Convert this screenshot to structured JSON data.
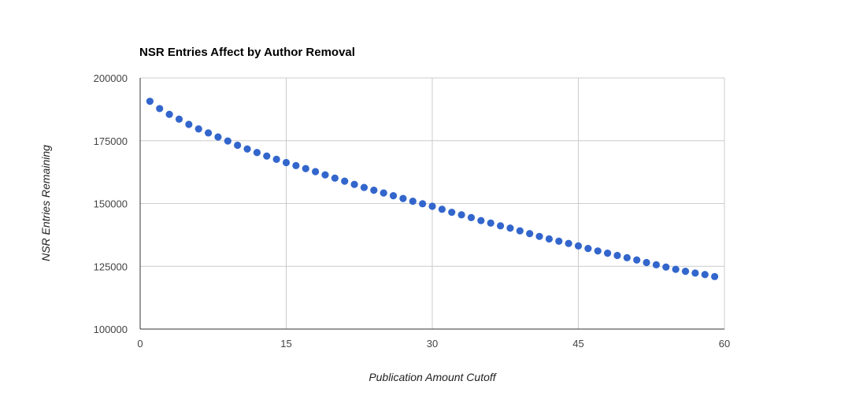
{
  "chart_data": {
    "type": "scatter",
    "title": "NSR Entries Affect by Author Removal",
    "xlabel": "Publication Amount Cutoff",
    "ylabel": "NSR Entries Remaining",
    "xlim": [
      0,
      60
    ],
    "ylim": [
      100000,
      200000
    ],
    "xticks": [
      "0",
      "15",
      "30",
      "45",
      "60"
    ],
    "yticks": [
      "100000",
      "125000",
      "150000",
      "175000",
      "200000"
    ],
    "grid": true,
    "legend": "none",
    "color": "#3366cc",
    "x": [
      1,
      2,
      3,
      4,
      5,
      6,
      7,
      8,
      9,
      10,
      11,
      12,
      13,
      14,
      15,
      16,
      17,
      18,
      19,
      20,
      21,
      22,
      23,
      24,
      25,
      26,
      27,
      28,
      29,
      30,
      31,
      32,
      33,
      34,
      35,
      36,
      37,
      38,
      39,
      40,
      41,
      42,
      43,
      44,
      45,
      46,
      47,
      48,
      49,
      50,
      51,
      52,
      53,
      54,
      55,
      56,
      57,
      58,
      59
    ],
    "y": [
      190700,
      187800,
      185500,
      183600,
      181500,
      179700,
      178100,
      176500,
      174900,
      173200,
      171700,
      170300,
      168900,
      167600,
      166300,
      165100,
      163900,
      162700,
      161400,
      160100,
      158900,
      157600,
      156400,
      155300,
      154200,
      153100,
      152000,
      150900,
      149900,
      148900,
      147700,
      146500,
      145500,
      144400,
      143200,
      142200,
      141100,
      140200,
      139100,
      138000,
      136900,
      135900,
      135000,
      134100,
      133100,
      132100,
      131100,
      130200,
      129300,
      128400,
      127500,
      126500,
      125600,
      124700,
      123800,
      123000,
      122300,
      121700,
      120900
    ]
  }
}
